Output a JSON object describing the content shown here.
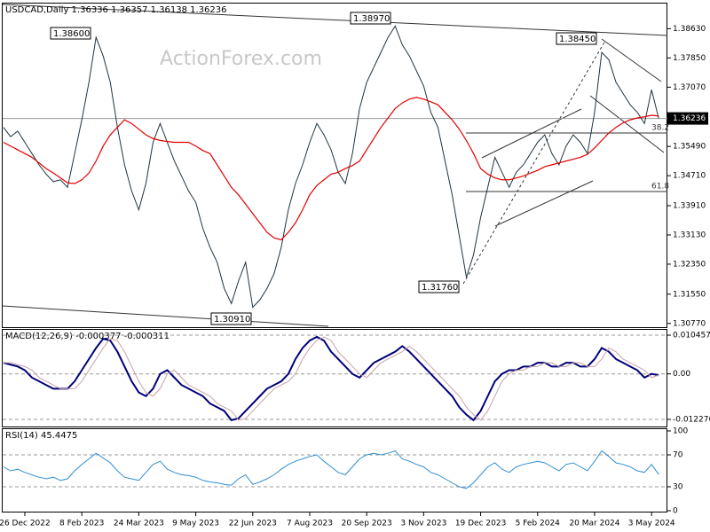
{
  "chart_data": [
    {
      "type": "line",
      "title": "USDCAD,Daily 1.36336 1.36357 1.36138 1.36236",
      "watermark": "ActionForex.com",
      "categories": [
        null,
        null,
        null,
        "26 Dec 2022",
        null,
        null,
        null,
        null,
        null,
        null,
        null,
        "8 Feb 2023",
        null,
        null,
        null,
        null,
        null,
        null,
        null,
        "24 Mar 2023",
        null,
        null,
        null,
        null,
        null,
        null,
        null,
        "9 May 2023",
        null,
        null,
        null,
        null,
        null,
        null,
        null,
        "22 Jun 2023",
        null,
        null,
        null,
        null,
        null,
        null,
        null,
        "7 Aug 2023",
        null,
        null,
        null,
        null,
        null,
        null,
        null,
        "20 Sep 2023",
        null,
        null,
        null,
        null,
        null,
        null,
        null,
        "3 Nov 2023",
        null,
        null,
        null,
        null,
        null,
        null,
        null,
        "19 Dec 2023",
        null,
        null,
        null,
        null,
        null,
        null,
        null,
        "5 Feb 2024",
        null,
        null,
        null,
        null,
        null,
        null,
        null,
        "20 Mar 2024",
        null,
        null,
        null,
        null,
        null,
        null,
        null,
        "3 May 2024",
        null
      ],
      "series": [
        {
          "color": "#1f3440",
          "values": [
            1.36,
            1.3575,
            1.359,
            1.356,
            1.353,
            1.35,
            1.3475,
            1.3455,
            1.346,
            1.344,
            1.353,
            1.362,
            1.372,
            1.384,
            1.379,
            1.372,
            1.36,
            1.35,
            1.343,
            1.338,
            1.345,
            1.356,
            1.361,
            1.356,
            1.351,
            1.347,
            1.343,
            1.34,
            1.333,
            1.328,
            1.324,
            1.317,
            1.313,
            1.319,
            1.324,
            1.312,
            1.314,
            1.317,
            1.321,
            1.328,
            1.338,
            1.345,
            1.35,
            1.356,
            1.361,
            1.358,
            1.354,
            1.348,
            1.345,
            1.353,
            1.365,
            1.372,
            1.376,
            1.38,
            1.384,
            1.387,
            1.382,
            1.379,
            1.375,
            1.371,
            1.364,
            1.36,
            1.351,
            1.342,
            1.331,
            1.32,
            1.326,
            1.336,
            1.344,
            1.352,
            1.348,
            1.344,
            1.348,
            1.35,
            1.353,
            1.356,
            1.358,
            1.353,
            1.35,
            1.355,
            1.358,
            1.356,
            1.353,
            1.364,
            1.38,
            1.378,
            1.372,
            1.369,
            1.366,
            1.364,
            1.361,
            1.37,
            1.36236
          ]
        },
        {
          "color": "#e00000",
          "values": [
            1.356,
            1.355,
            1.354,
            1.353,
            1.352,
            1.3505,
            1.349,
            1.3478,
            1.3465,
            1.3452,
            1.345,
            1.346,
            1.3478,
            1.351,
            1.355,
            1.358,
            1.36,
            1.362,
            1.361,
            1.3595,
            1.358,
            1.357,
            1.3565,
            1.3562,
            1.356,
            1.356,
            1.356,
            1.355,
            1.3538,
            1.353,
            1.35,
            1.347,
            1.344,
            1.342,
            1.3395,
            1.337,
            1.3345,
            1.332,
            1.3305,
            1.33,
            1.332,
            1.3345,
            1.338,
            1.342,
            1.3445,
            1.346,
            1.3475,
            1.348,
            1.349,
            1.3498,
            1.351,
            1.354,
            1.357,
            1.36,
            1.3625,
            1.365,
            1.3665,
            1.3675,
            1.368,
            1.3675,
            1.3668,
            1.366,
            1.364,
            1.362,
            1.3595,
            1.3565,
            1.353,
            1.349,
            1.3475,
            1.3465,
            1.346,
            1.346,
            1.3465,
            1.347,
            1.3478,
            1.3485,
            1.3495,
            1.35,
            1.3505,
            1.351,
            1.3515,
            1.352,
            1.3528,
            1.3545,
            1.3565,
            1.3585,
            1.36,
            1.3612,
            1.362,
            1.3625,
            1.3628,
            1.3632,
            1.363
          ]
        }
      ],
      "current_price": 1.36236,
      "annotations": [
        "1.38600",
        "1.38970",
        "1.38450",
        "1.31760",
        "1.30910",
        "38.2",
        "61.8"
      ],
      "ylim": [
        1.3067,
        1.393
      ],
      "yticks": [
        {
          "value": 1.3863,
          "label": "1.38630"
        },
        {
          "value": 1.3785,
          "label": "1.37850"
        },
        {
          "value": 1.3707,
          "label": "1.37070"
        },
        {
          "value": 1.3549,
          "label": "1.35490"
        },
        {
          "value": 1.3471,
          "label": "1.34710"
        },
        {
          "value": 1.3391,
          "label": "1.33910"
        },
        {
          "value": 1.3313,
          "label": "1.33130"
        },
        {
          "value": 1.3235,
          "label": "1.32350"
        },
        {
          "value": 1.3155,
          "label": "1.31550"
        },
        {
          "value": 1.3077,
          "label": "1.30770"
        }
      ],
      "grid": false
    },
    {
      "type": "line",
      "title": "MACD(12,26,9) -0.000377 -0.000311",
      "series": [
        {
          "color": "#00007a",
          "values": [
            0.003,
            0.0025,
            0.002,
            0.001,
            -0.001,
            -0.002,
            -0.003,
            -0.004,
            -0.004,
            -0.004,
            -0.002,
            0.001,
            0.004,
            0.007,
            0.0095,
            0.009,
            0.006,
            0.002,
            -0.002,
            -0.005,
            -0.006,
            -0.004,
            0,
            0.001,
            -0.001,
            -0.003,
            -0.004,
            -0.005,
            -0.006,
            -0.008,
            -0.009,
            -0.01,
            -0.0125,
            -0.012,
            -0.01,
            -0.008,
            -0.006,
            -0.004,
            -0.003,
            -0.002,
            0,
            0.004,
            0.007,
            0.009,
            0.01,
            0.009,
            0.006,
            0.004,
            0.002,
            0,
            -0.001,
            0.001,
            0.003,
            0.004,
            0.005,
            0.006,
            0.0075,
            0.006,
            0.004,
            0.002,
            0,
            -0.002,
            -0.004,
            -0.006,
            -0.009,
            -0.011,
            -0.0125,
            -0.01,
            -0.006,
            -0.002,
            0,
            0.001,
            0.001,
            0.002,
            0.002,
            0.003,
            0.003,
            0.002,
            0.002,
            0.003,
            0.003,
            0.002,
            0.002,
            0.004,
            0.007,
            0.006,
            0.004,
            0.003,
            0.002,
            0.001,
            -0.001,
            0,
            -0.000377
          ]
        },
        {
          "color": "#c9a3a3",
          "values": [
            0.003,
            0.003,
            0.0025,
            0.002,
            0.001,
            -0.001,
            -0.002,
            -0.003,
            -0.004,
            -0.004,
            -0.004,
            -0.002,
            0.001,
            0.004,
            0.007,
            0.0095,
            0.009,
            0.006,
            0.002,
            -0.002,
            -0.005,
            -0.006,
            -0.004,
            0,
            0.001,
            -0.001,
            -0.003,
            -0.004,
            -0.005,
            -0.006,
            -0.008,
            -0.009,
            -0.01,
            -0.0125,
            -0.012,
            -0.01,
            -0.008,
            -0.006,
            -0.004,
            -0.003,
            -0.002,
            0,
            0.004,
            0.007,
            0.009,
            0.01,
            0.009,
            0.006,
            0.004,
            0.002,
            0,
            -0.001,
            0.001,
            0.003,
            0.004,
            0.005,
            0.006,
            0.0075,
            0.006,
            0.004,
            0.002,
            0,
            -0.002,
            -0.004,
            -0.006,
            -0.009,
            -0.011,
            -0.0125,
            -0.01,
            -0.006,
            -0.002,
            0,
            0.001,
            0.001,
            0.002,
            0.002,
            0.003,
            0.003,
            0.002,
            0.002,
            0.003,
            0.003,
            0.002,
            0.002,
            0.004,
            0.007,
            0.006,
            0.004,
            0.003,
            0.002,
            0.001,
            -0.001,
            -0.000311
          ]
        }
      ],
      "ylim": [
        -0.0142,
        0.0119
      ],
      "yticks": [
        0.010457,
        {
          "value": 0,
          "label": "0.00"
        },
        -0.012276
      ],
      "grid": true
    },
    {
      "type": "line",
      "title": "RSI(14) 45.4475",
      "series": [
        {
          "color": "#2f8fd0",
          "values": [
            55,
            50,
            52,
            48,
            45,
            42,
            40,
            42,
            38,
            40,
            50,
            58,
            65,
            72,
            66,
            60,
            50,
            42,
            40,
            38,
            48,
            58,
            62,
            52,
            48,
            45,
            44,
            42,
            38,
            36,
            35,
            33,
            32,
            40,
            45,
            33,
            36,
            40,
            45,
            52,
            58,
            62,
            65,
            68,
            70,
            62,
            55,
            48,
            45,
            55,
            65,
            70,
            72,
            70,
            72,
            75,
            65,
            62,
            58,
            55,
            48,
            45,
            40,
            35,
            30,
            28,
            35,
            45,
            55,
            60,
            52,
            48,
            55,
            58,
            60,
            62,
            60,
            55,
            50,
            58,
            60,
            55,
            50,
            62,
            75,
            68,
            60,
            58,
            55,
            50,
            48,
            58,
            45.4475
          ]
        }
      ],
      "ylim": [
        0,
        100
      ],
      "yticks": [
        100,
        70,
        30,
        0
      ],
      "grid": true
    }
  ]
}
